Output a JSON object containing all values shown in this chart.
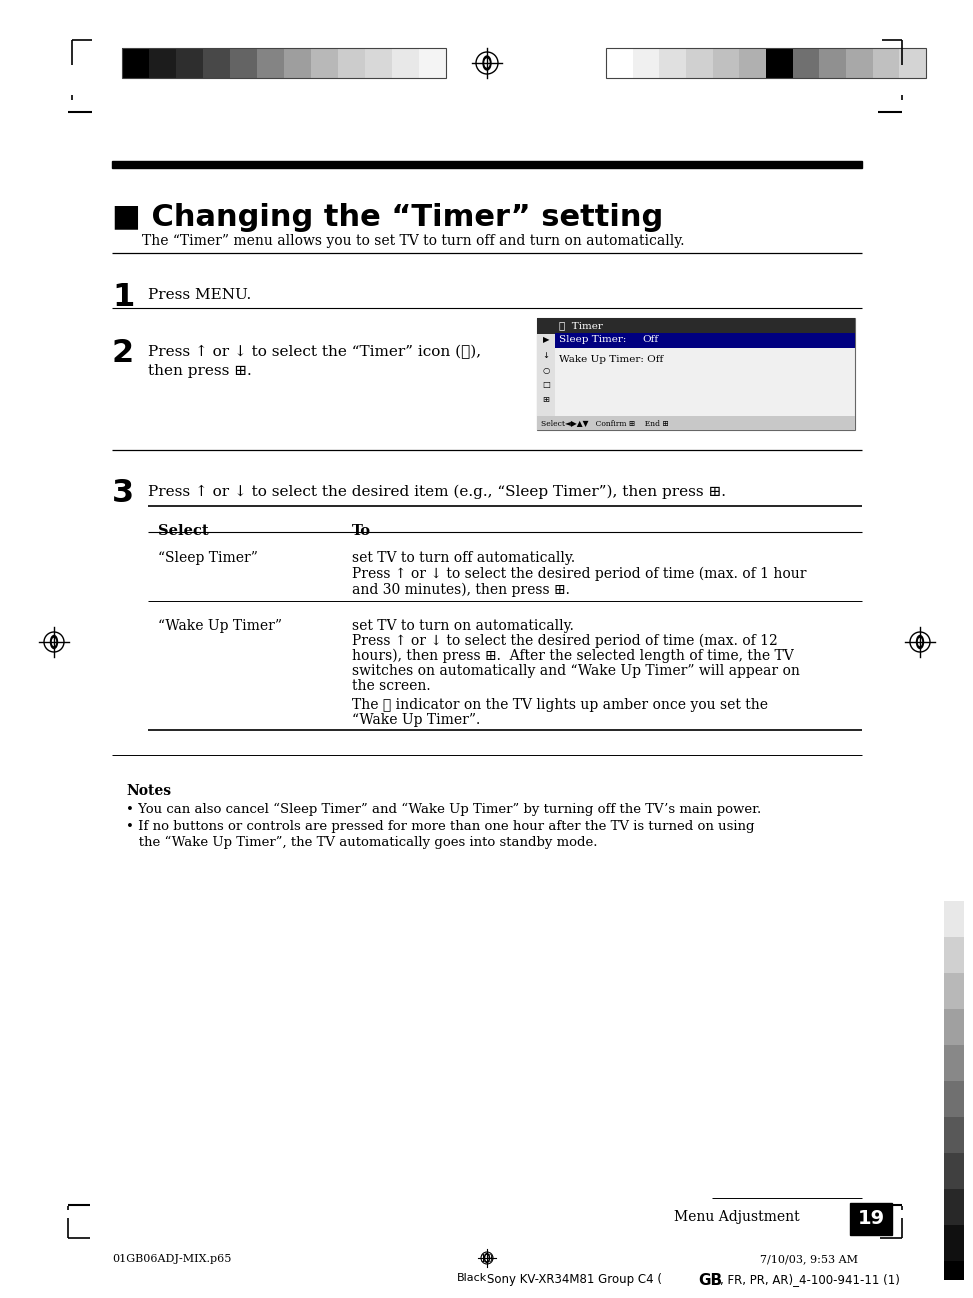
{
  "title": "■ Changing the “Timer” setting",
  "subtitle": "The “Timer” menu allows you to set TV to turn off and turn on automatically.",
  "step1_text": "Press MENU.",
  "step2_line1": "Press ↑ or ↓ to select the “Timer” icon (⌚),",
  "step2_line2": "then press ⊞.",
  "step3_text": "Press ↑ or ↓ to select the desired item (e.g., “Sleep Timer”), then press ⊞.",
  "col1_header": "Select",
  "col2_header": "To",
  "row1_col1": "“Sleep Timer”",
  "row1_col2_1": "set TV to turn off automatically.",
  "row1_col2_2": "Press ↑ or ↓ to select the desired period of time (max. of 1 hour",
  "row1_col2_3": "and 30 minutes), then press ⊞.",
  "row2_col1": "“Wake Up Timer”",
  "row2_col2_1": "set TV to turn on automatically.",
  "row2_col2_2": "Press ↑ or ↓ to select the desired period of time (max. of 12",
  "row2_col2_3": "hours), then press ⊞.  After the selected length of time, the TV",
  "row2_col2_4": "switches on automatically and “Wake Up Timer” will appear on",
  "row2_col2_5": "the screen.",
  "row2_col2_6": "The ⌚ indicator on the TV lights up amber once you set the",
  "row2_col2_7": "“Wake Up Timer”.",
  "notes_title": "Notes",
  "note1": "• You can also cancel “Sleep Timer” and “Wake Up Timer” by turning off the TV’s main power.",
  "note2_1": "• If no buttons or controls are pressed for more than one hour after the TV is turned on using",
  "note2_2": "   the “Wake Up Timer”, the TV automatically goes into standby mode.",
  "page_label": "Menu Adjustment",
  "page_number": "19",
  "footer_left": "01GB06ADJ-MIX.p65",
  "footer_center": "19",
  "footer_right": "7/10/03, 9:53 AM",
  "footer_bottom": "BlackSony KV-XR34M81 Group C4 (GB, FR, PR, AR)_4-100-941-11 (1)",
  "bar_left_colors": [
    "#000000",
    "#1c1c1c",
    "#2e2e2e",
    "#484848",
    "#646464",
    "#848484",
    "#9e9e9e",
    "#b8b8b8",
    "#cccccc",
    "#d8d8d8",
    "#e8e8e8",
    "#f4f4f4"
  ],
  "bar_right_colors": [
    "#ffffff",
    "#f0f0f0",
    "#e0e0e0",
    "#d0d0d0",
    "#c0c0c0",
    "#b0b0b0",
    "#000000",
    "#707070",
    "#909090",
    "#a8a8a8",
    "#c0c0c0",
    "#d4d4d4"
  ],
  "side_strip_colors": [
    "#ffffff",
    "#e8e8e8",
    "#d0d0d0",
    "#b8b8b8",
    "#a0a0a0",
    "#888888",
    "#707070",
    "#585858",
    "#404040",
    "#282828",
    "#101010",
    "#000000"
  ]
}
